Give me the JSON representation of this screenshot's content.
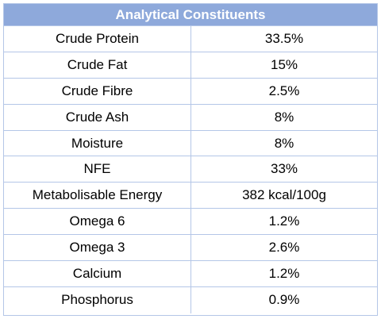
{
  "table": {
    "title": "Analytical Constituents",
    "rows": [
      {
        "name": "Crude Protein",
        "value": "33.5%"
      },
      {
        "name": "Crude Fat",
        "value": "15%"
      },
      {
        "name": "Crude Fibre",
        "value": "2.5%"
      },
      {
        "name": "Crude Ash",
        "value": "8%"
      },
      {
        "name": "Moisture",
        "value": "8%"
      },
      {
        "name": "NFE",
        "value": "33%"
      },
      {
        "name": "Metabolisable Energy",
        "value": "382 kcal/100g"
      },
      {
        "name": "Omega 6",
        "value": "1.2%"
      },
      {
        "name": "Omega 3",
        "value": "2.6%"
      },
      {
        "name": "Calcium",
        "value": "1.2%"
      },
      {
        "name": "Phosphorus",
        "value": "0.9%"
      }
    ]
  },
  "colors": {
    "header_bg": "#8ea9db",
    "border": "#b4c6e7"
  }
}
